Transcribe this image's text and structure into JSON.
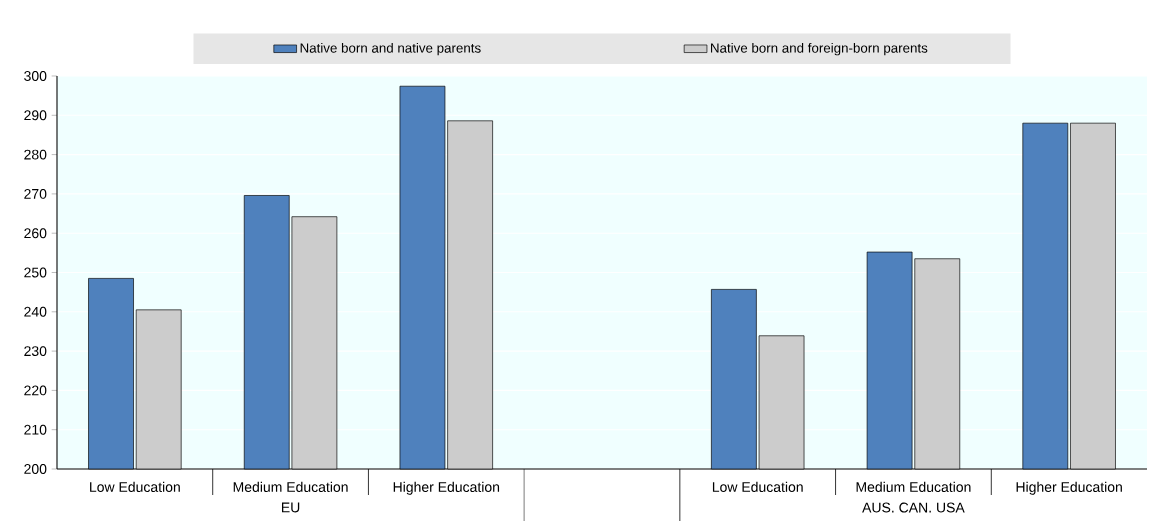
{
  "chart_data": {
    "type": "bar",
    "categories": [
      "Low Education",
      "Medium Education",
      "Higher Education",
      null,
      "Low Education",
      "Medium Education",
      "Higher Education"
    ],
    "series": [
      {
        "name": "Native born and native parents",
        "color": "#4f81bd",
        "values": [
          248.5,
          269.6,
          297.4,
          null,
          245.7,
          255.2,
          288.0
        ]
      },
      {
        "name": "Native born and foreign-born parents",
        "color": "#cccccc",
        "values": [
          240.5,
          264.2,
          288.6,
          null,
          233.9,
          253.5,
          288.0
        ]
      }
    ],
    "annotations": [
      "EU",
      "AUS. CAN. USA"
    ],
    "ylim": [
      200,
      300
    ],
    "yticks": [
      200,
      210,
      220,
      230,
      240,
      250,
      260,
      270,
      280,
      290,
      300
    ],
    "grid": "y",
    "legend": "top"
  }
}
